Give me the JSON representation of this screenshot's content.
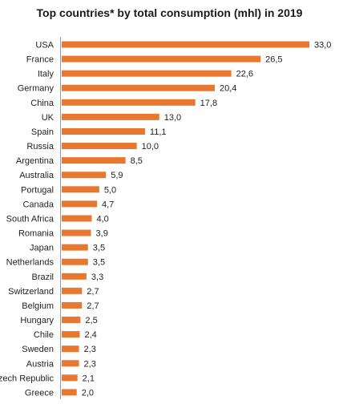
{
  "colors": {
    "bar": "#E8782F",
    "axis": "#9a9a9a",
    "text": "#222222"
  },
  "chart_data": {
    "type": "bar",
    "orientation": "horizontal",
    "title": "Top countries* by total consumption (mhl) in 2019",
    "xlabel": "",
    "ylabel": "",
    "xlim": [
      0,
      33.0
    ],
    "grid": false,
    "legend": "none",
    "categories": [
      "USA",
      "France",
      "Italy",
      "Germany",
      "China",
      "UK",
      "Spain",
      "Russia",
      "Argentina",
      "Australia",
      "Portugal",
      "Canada",
      "South Africa",
      "Romania",
      "Japan",
      "Netherlands",
      "Brazil",
      "Switzerland",
      "Belgium",
      "Hungary",
      "Chile",
      "Sweden",
      "Austria",
      "Czech Republic",
      "Greece"
    ],
    "values": [
      33.0,
      26.5,
      22.6,
      20.4,
      17.8,
      13.0,
      11.1,
      10.0,
      8.5,
      5.9,
      5.0,
      4.7,
      4.0,
      3.9,
      3.5,
      3.5,
      3.3,
      2.7,
      2.7,
      2.5,
      2.4,
      2.3,
      2.3,
      2.1,
      2.0
    ],
    "value_labels": [
      "33,0",
      "26,5",
      "22,6",
      "20,4",
      "17,8",
      "13,0",
      "11,1",
      "10,0",
      "8,5",
      "5,9",
      "5,0",
      "4,7",
      "4,0",
      "3,9",
      "3,5",
      "3,5",
      "3,3",
      "2,7",
      "2,7",
      "2,5",
      "2,4",
      "2,3",
      "2,3",
      "2,1",
      "2,0"
    ]
  }
}
